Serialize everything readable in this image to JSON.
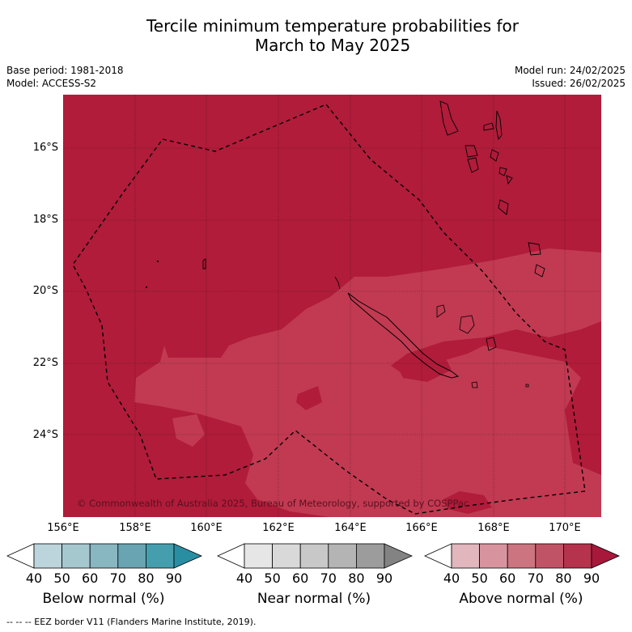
{
  "title_line1": "Tercile minimum temperature probabilities for",
  "title_line2": "March to May 2025",
  "meta": {
    "base_period": "Base period: 1981-2018",
    "model": "Model: ACCESS-S2",
    "model_run": "Model run: 24/02/2025",
    "issued": "Issued: 26/02/2025"
  },
  "map": {
    "lon_ticks": [
      "156°E",
      "158°E",
      "160°E",
      "162°E",
      "164°E",
      "166°E",
      "168°E",
      "170°E"
    ],
    "lat_ticks": [
      "16°S",
      "18°S",
      "20°S",
      "22°S",
      "24°S"
    ],
    "copyright": "© Commonwealth of Australia 2025, Bureau of Meteorology, supported by COSPPac",
    "colors": {
      "above_80": "#b01c3a",
      "above_70": "#c13a52",
      "land_outline": "#000000"
    }
  },
  "colorbars": [
    {
      "title": "Below normal (%)",
      "ticks": [
        "40",
        "50",
        "60",
        "70",
        "80",
        "90"
      ],
      "colors": [
        "#ffffff",
        "#bcd4db",
        "#a5c8cf",
        "#88b6c1",
        "#69a4b2",
        "#449ead",
        "#2a8ea3"
      ]
    },
    {
      "title": "Near normal (%)",
      "ticks": [
        "40",
        "50",
        "60",
        "70",
        "80",
        "90"
      ],
      "colors": [
        "#ffffff",
        "#e6e6e6",
        "#d9d9d9",
        "#c8c8c8",
        "#b4b4b4",
        "#9c9c9c",
        "#838383"
      ]
    },
    {
      "title": "Above normal (%)",
      "ticks": [
        "40",
        "50",
        "60",
        "70",
        "80",
        "90"
      ],
      "colors": [
        "#ffffff",
        "#e1b6bd",
        "#d8949e",
        "#cc7480",
        "#c05466",
        "#b5334c",
        "#a8183a"
      ]
    }
  ],
  "footer": "--  --  -- EEZ border V11 (Flanders Marine Institute, 2019)."
}
